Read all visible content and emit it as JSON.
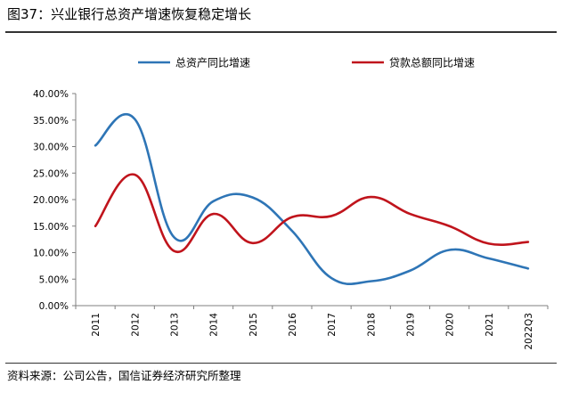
{
  "header": {
    "title": "图37：兴业银行总资产增速恢复稳定增长"
  },
  "footer": {
    "source": "资料来源：公司公告，国信证券经济研究所整理"
  },
  "chart_data": {
    "type": "line",
    "x": [
      "2011",
      "2012",
      "2013",
      "2014",
      "2015",
      "2016",
      "2017",
      "2018",
      "2019",
      "2020",
      "2021",
      "2022Q3"
    ],
    "series": [
      {
        "name": "总资产同比增速",
        "color": "#2e75b6",
        "values": [
          30.2,
          35.2,
          12.9,
          19.7,
          20.4,
          14.1,
          5.2,
          4.6,
          6.6,
          10.5,
          8.9,
          7.0
        ]
      },
      {
        "name": "贷款总额同比增速",
        "color": "#c0141c",
        "values": [
          15.0,
          24.7,
          10.3,
          17.3,
          11.8,
          16.7,
          16.9,
          20.5,
          17.3,
          15.0,
          11.7,
          12.0
        ]
      }
    ],
    "ylim": [
      0,
      40
    ],
    "yticks": [
      "0.00%",
      "5.00%",
      "10.00%",
      "15.00%",
      "20.00%",
      "25.00%",
      "30.00%",
      "35.00%",
      "40.00%"
    ],
    "ytick_values": [
      0,
      5,
      10,
      15,
      20,
      25,
      30,
      35,
      40
    ],
    "legend_position": "top",
    "grid": false,
    "smooth": true
  }
}
